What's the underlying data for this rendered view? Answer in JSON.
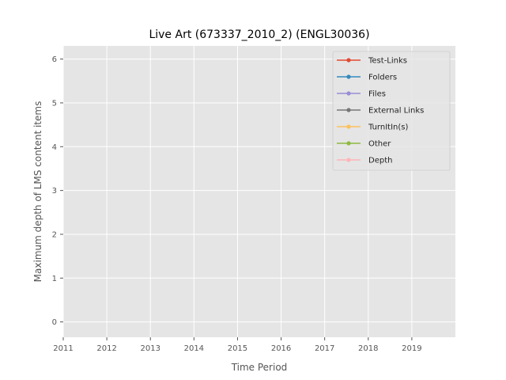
{
  "chart_data": {
    "type": "line",
    "title": "Live Art (673337_2010_2) (ENGL30036)",
    "xlabel": "Time Period",
    "ylabel": "Maximum depth of LMS content items",
    "x_ticks": [
      "2011",
      "2012",
      "2013",
      "2014",
      "2015",
      "2016",
      "2017",
      "2018",
      "2019"
    ],
    "y_ticks": [
      "0",
      "1",
      "2",
      "3",
      "4",
      "5",
      "6"
    ],
    "xlim": [
      2011,
      2020
    ],
    "ylim": [
      -0.35,
      6.3
    ],
    "grid": true,
    "legend_position": "top-right",
    "series": [
      {
        "name": "Test-Links",
        "color": "#e24a33",
        "values": []
      },
      {
        "name": "Folders",
        "color": "#348abd",
        "values": []
      },
      {
        "name": "Files",
        "color": "#988ed5",
        "values": []
      },
      {
        "name": "External Links",
        "color": "#777777",
        "values": []
      },
      {
        "name": "TurnItIn(s)",
        "color": "#fbc15e",
        "values": []
      },
      {
        "name": "Other",
        "color": "#8eba42",
        "values": []
      },
      {
        "name": "Depth",
        "color": "#ffb5b8",
        "values": []
      }
    ]
  }
}
